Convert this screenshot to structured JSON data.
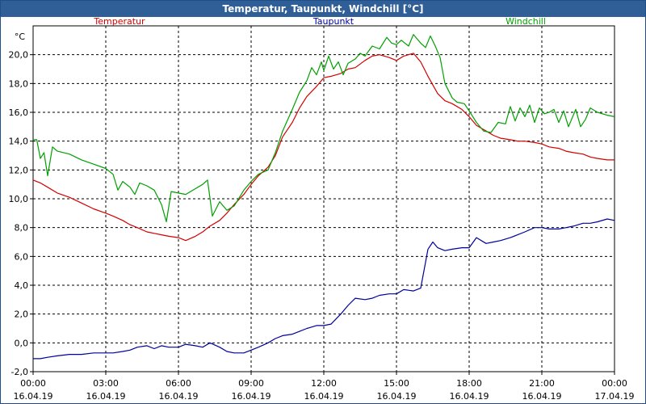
{
  "window": {
    "title": "Temperatur, Taupunkt, Windchill [°C]",
    "background": "#ffffff",
    "title_bar_color": "#2f5f96"
  },
  "chart_data": {
    "type": "line",
    "title": "Temperatur, Taupunkt, Windchill [°C]",
    "ylabel": "°C",
    "ylim": [
      -2,
      22
    ],
    "yticks": [
      -2,
      0,
      2,
      4,
      6,
      8,
      10,
      12,
      14,
      16,
      18,
      20
    ],
    "ytick_labels": [
      "-2,0",
      "0,0",
      "2,0",
      "4,0",
      "6,0",
      "8,0",
      "10,0",
      "12,0",
      "14,0",
      "16,0",
      "18,0",
      "20,0"
    ],
    "xlim_hours": [
      0,
      24
    ],
    "x_unit": "hours since 16.04.19 00:00",
    "xticks": [
      {
        "hour": 0,
        "time": "00:00",
        "date": "16.04.19"
      },
      {
        "hour": 3,
        "time": "03:00",
        "date": "16.04.19"
      },
      {
        "hour": 6,
        "time": "06:00",
        "date": "16.04.19"
      },
      {
        "hour": 9,
        "time": "09:00",
        "date": "16.04.19"
      },
      {
        "hour": 12,
        "time": "12:00",
        "date": "16.04.19"
      },
      {
        "hour": 15,
        "time": "15:00",
        "date": "16.04.19"
      },
      {
        "hour": 18,
        "time": "18:00",
        "date": "16.04.19"
      },
      {
        "hour": 21,
        "time": "21:00",
        "date": "16.04.19"
      },
      {
        "hour": 24,
        "time": "00:00",
        "date": "17.04.19"
      }
    ],
    "grid": true,
    "legend_placement": "top",
    "series": [
      {
        "name": "Temperatur",
        "color": "#d40000",
        "points": [
          [
            0,
            11.3
          ],
          [
            0.3,
            11.1
          ],
          [
            0.6,
            10.8
          ],
          [
            1.0,
            10.4
          ],
          [
            1.5,
            10.1
          ],
          [
            2.0,
            9.7
          ],
          [
            2.5,
            9.3
          ],
          [
            3.0,
            9.0
          ],
          [
            3.3,
            8.8
          ],
          [
            3.7,
            8.5
          ],
          [
            4.0,
            8.2
          ],
          [
            4.3,
            8.0
          ],
          [
            4.7,
            7.7
          ],
          [
            5.0,
            7.6
          ],
          [
            5.3,
            7.5
          ],
          [
            5.6,
            7.4
          ],
          [
            6.0,
            7.3
          ],
          [
            6.3,
            7.1
          ],
          [
            6.7,
            7.4
          ],
          [
            7.0,
            7.7
          ],
          [
            7.3,
            8.1
          ],
          [
            7.7,
            8.5
          ],
          [
            8.0,
            9.0
          ],
          [
            8.3,
            9.6
          ],
          [
            8.7,
            10.3
          ],
          [
            9.0,
            11.0
          ],
          [
            9.3,
            11.6
          ],
          [
            9.7,
            12.2
          ],
          [
            10.0,
            13.0
          ],
          [
            10.3,
            14.3
          ],
          [
            10.7,
            15.3
          ],
          [
            11.0,
            16.3
          ],
          [
            11.3,
            17.1
          ],
          [
            11.7,
            17.8
          ],
          [
            12.0,
            18.4
          ],
          [
            12.3,
            18.5
          ],
          [
            12.7,
            18.7
          ],
          [
            13.0,
            19.0
          ],
          [
            13.3,
            19.1
          ],
          [
            13.7,
            19.6
          ],
          [
            14.0,
            19.9
          ],
          [
            14.3,
            20.0
          ],
          [
            14.7,
            19.8
          ],
          [
            15.0,
            19.6
          ],
          [
            15.3,
            19.9
          ],
          [
            15.7,
            20.1
          ],
          [
            16.0,
            19.5
          ],
          [
            16.3,
            18.5
          ],
          [
            16.7,
            17.3
          ],
          [
            17.0,
            16.8
          ],
          [
            17.3,
            16.6
          ],
          [
            17.7,
            16.2
          ],
          [
            18.0,
            15.7
          ],
          [
            18.3,
            15.1
          ],
          [
            18.7,
            14.7
          ],
          [
            19.0,
            14.4
          ],
          [
            19.3,
            14.2
          ],
          [
            19.7,
            14.1
          ],
          [
            20.0,
            14.0
          ],
          [
            20.3,
            14.0
          ],
          [
            20.7,
            13.9
          ],
          [
            21.0,
            13.8
          ],
          [
            21.3,
            13.6
          ],
          [
            21.7,
            13.5
          ],
          [
            22.0,
            13.3
          ],
          [
            22.3,
            13.2
          ],
          [
            22.7,
            13.1
          ],
          [
            23.0,
            12.9
          ],
          [
            23.3,
            12.8
          ],
          [
            23.7,
            12.7
          ],
          [
            24.0,
            12.7
          ]
        ]
      },
      {
        "name": "Taupunkt",
        "color": "#00009c",
        "points": [
          [
            0,
            -1.1
          ],
          [
            0.3,
            -1.1
          ],
          [
            0.6,
            -1.0
          ],
          [
            1.0,
            -0.9
          ],
          [
            1.5,
            -0.8
          ],
          [
            2.0,
            -0.8
          ],
          [
            2.5,
            -0.7
          ],
          [
            3.0,
            -0.7
          ],
          [
            3.3,
            -0.7
          ],
          [
            3.7,
            -0.6
          ],
          [
            4.0,
            -0.5
          ],
          [
            4.3,
            -0.3
          ],
          [
            4.7,
            -0.2
          ],
          [
            5.0,
            -0.4
          ],
          [
            5.3,
            -0.2
          ],
          [
            5.6,
            -0.3
          ],
          [
            6.0,
            -0.3
          ],
          [
            6.3,
            -0.1
          ],
          [
            6.7,
            -0.2
          ],
          [
            7.0,
            -0.3
          ],
          [
            7.3,
            0.0
          ],
          [
            7.7,
            -0.3
          ],
          [
            8.0,
            -0.6
          ],
          [
            8.3,
            -0.7
          ],
          [
            8.7,
            -0.7
          ],
          [
            9.0,
            -0.5
          ],
          [
            9.3,
            -0.3
          ],
          [
            9.7,
            0.0
          ],
          [
            10.0,
            0.3
          ],
          [
            10.3,
            0.5
          ],
          [
            10.7,
            0.6
          ],
          [
            11.0,
            0.8
          ],
          [
            11.3,
            1.0
          ],
          [
            11.7,
            1.2
          ],
          [
            12.0,
            1.2
          ],
          [
            12.3,
            1.3
          ],
          [
            12.7,
            2.0
          ],
          [
            13.0,
            2.6
          ],
          [
            13.3,
            3.1
          ],
          [
            13.7,
            3.0
          ],
          [
            14.0,
            3.1
          ],
          [
            14.3,
            3.3
          ],
          [
            14.7,
            3.4
          ],
          [
            15.0,
            3.4
          ],
          [
            15.3,
            3.7
          ],
          [
            15.7,
            3.6
          ],
          [
            16.0,
            3.8
          ],
          [
            16.3,
            6.5
          ],
          [
            16.5,
            7.0
          ],
          [
            16.7,
            6.6
          ],
          [
            17.0,
            6.4
          ],
          [
            17.3,
            6.5
          ],
          [
            17.7,
            6.6
          ],
          [
            18.0,
            6.6
          ],
          [
            18.3,
            7.3
          ],
          [
            18.7,
            6.9
          ],
          [
            19.0,
            7.0
          ],
          [
            19.3,
            7.1
          ],
          [
            19.7,
            7.3
          ],
          [
            20.0,
            7.5
          ],
          [
            20.3,
            7.7
          ],
          [
            20.7,
            8.0
          ],
          [
            21.0,
            8.0
          ],
          [
            21.3,
            7.9
          ],
          [
            21.7,
            7.9
          ],
          [
            22.0,
            8.0
          ],
          [
            22.3,
            8.1
          ],
          [
            22.7,
            8.3
          ],
          [
            23.0,
            8.3
          ],
          [
            23.3,
            8.4
          ],
          [
            23.7,
            8.6
          ],
          [
            24.0,
            8.5
          ]
        ]
      },
      {
        "name": "Windchill",
        "color": "#00a000",
        "points": [
          [
            0,
            14.1
          ],
          [
            0.15,
            14.1
          ],
          [
            0.3,
            12.8
          ],
          [
            0.45,
            13.2
          ],
          [
            0.6,
            11.6
          ],
          [
            0.8,
            13.6
          ],
          [
            1.0,
            13.3
          ],
          [
            1.5,
            13.1
          ],
          [
            2.0,
            12.7
          ],
          [
            2.5,
            12.4
          ],
          [
            3.0,
            12.1
          ],
          [
            3.3,
            11.7
          ],
          [
            3.5,
            10.6
          ],
          [
            3.7,
            11.2
          ],
          [
            4.0,
            10.8
          ],
          [
            4.2,
            10.3
          ],
          [
            4.4,
            11.1
          ],
          [
            4.7,
            10.9
          ],
          [
            5.0,
            10.6
          ],
          [
            5.3,
            9.6
          ],
          [
            5.5,
            8.4
          ],
          [
            5.7,
            10.5
          ],
          [
            6.0,
            10.4
          ],
          [
            6.3,
            10.3
          ],
          [
            6.7,
            10.7
          ],
          [
            7.0,
            11.0
          ],
          [
            7.2,
            11.3
          ],
          [
            7.4,
            8.8
          ],
          [
            7.7,
            9.8
          ],
          [
            8.0,
            9.2
          ],
          [
            8.3,
            9.5
          ],
          [
            8.7,
            10.6
          ],
          [
            9.0,
            11.2
          ],
          [
            9.3,
            11.7
          ],
          [
            9.7,
            12.0
          ],
          [
            10.0,
            13.2
          ],
          [
            10.3,
            14.7
          ],
          [
            10.7,
            16.2
          ],
          [
            11.0,
            17.4
          ],
          [
            11.3,
            18.2
          ],
          [
            11.5,
            19.1
          ],
          [
            11.7,
            18.6
          ],
          [
            11.9,
            19.5
          ],
          [
            12.0,
            18.9
          ],
          [
            12.2,
            19.9
          ],
          [
            12.4,
            19.0
          ],
          [
            12.6,
            19.5
          ],
          [
            12.8,
            18.6
          ],
          [
            13.0,
            19.4
          ],
          [
            13.3,
            19.7
          ],
          [
            13.5,
            20.1
          ],
          [
            13.7,
            19.9
          ],
          [
            14.0,
            20.6
          ],
          [
            14.3,
            20.4
          ],
          [
            14.6,
            21.2
          ],
          [
            14.8,
            20.8
          ],
          [
            15.0,
            20.7
          ],
          [
            15.2,
            21.0
          ],
          [
            15.5,
            20.6
          ],
          [
            15.7,
            21.4
          ],
          [
            16.0,
            20.8
          ],
          [
            16.2,
            20.5
          ],
          [
            16.4,
            21.3
          ],
          [
            16.6,
            20.6
          ],
          [
            16.8,
            19.8
          ],
          [
            17.0,
            18.0
          ],
          [
            17.3,
            17.0
          ],
          [
            17.5,
            16.7
          ],
          [
            17.8,
            16.6
          ],
          [
            18.0,
            16.1
          ],
          [
            18.3,
            15.3
          ],
          [
            18.6,
            14.7
          ],
          [
            18.9,
            14.6
          ],
          [
            19.2,
            15.3
          ],
          [
            19.5,
            15.2
          ],
          [
            19.7,
            16.4
          ],
          [
            19.9,
            15.4
          ],
          [
            20.1,
            16.3
          ],
          [
            20.3,
            15.7
          ],
          [
            20.5,
            16.5
          ],
          [
            20.7,
            15.3
          ],
          [
            20.9,
            16.3
          ],
          [
            21.1,
            15.9
          ],
          [
            21.3,
            16.0
          ],
          [
            21.5,
            16.2
          ],
          [
            21.7,
            15.3
          ],
          [
            21.9,
            16.1
          ],
          [
            22.1,
            15.0
          ],
          [
            22.4,
            16.2
          ],
          [
            22.6,
            15.0
          ],
          [
            22.8,
            15.5
          ],
          [
            23.0,
            16.3
          ],
          [
            23.3,
            16.0
          ],
          [
            23.7,
            15.8
          ],
          [
            24.0,
            15.7
          ]
        ]
      }
    ]
  }
}
